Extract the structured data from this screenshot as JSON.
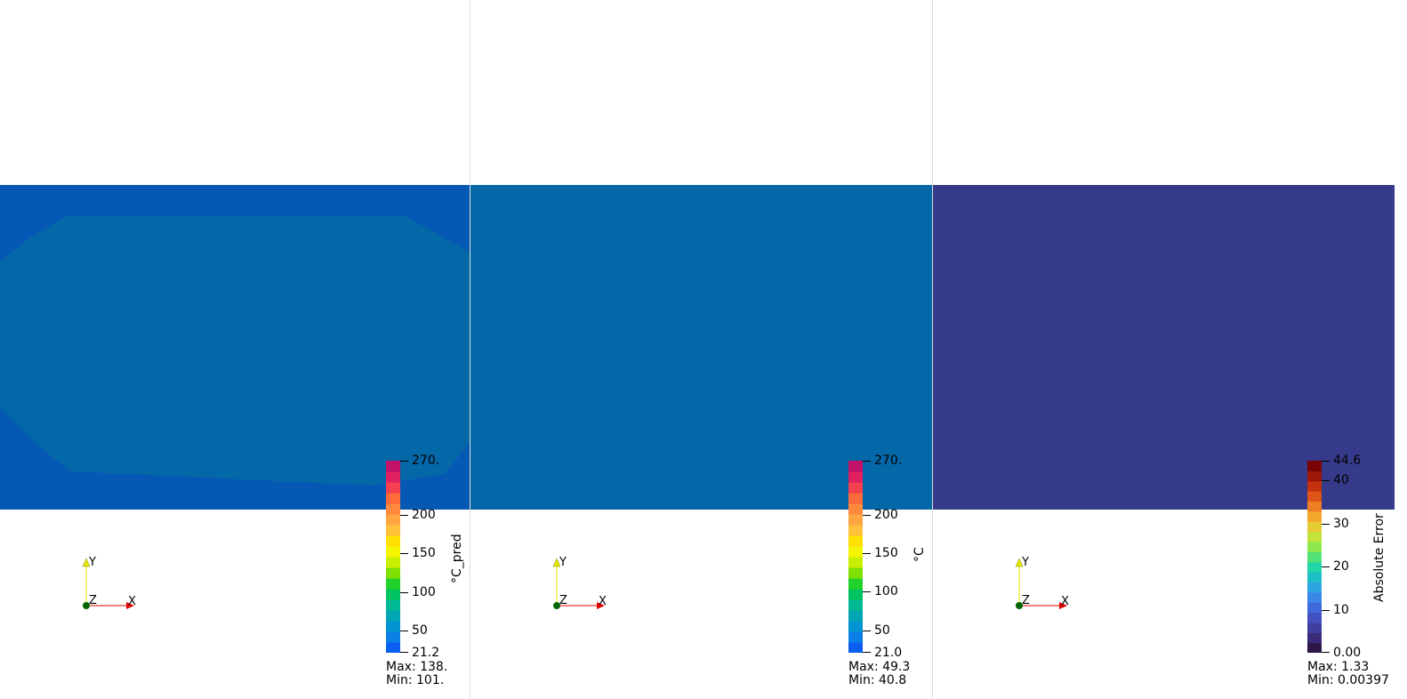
{
  "colors": {
    "pred_outer": "#0658b5",
    "pred_inner": "#0467a8",
    "true_field": "#0467a8",
    "err_field": "#353b8a",
    "x_axis": "#e00000",
    "y_axis": "#e6e600",
    "origin": "#006400"
  },
  "axes": {
    "x_label": "X",
    "y_label": "Y",
    "z_label": "Z"
  },
  "panels": {
    "pred": {
      "colorbar_title": "°C_pred",
      "ticks": [
        {
          "value": 270,
          "label": "270."
        },
        {
          "value": 200,
          "label": "200"
        },
        {
          "value": 150,
          "label": "150"
        },
        {
          "value": 100,
          "label": "100"
        },
        {
          "value": 50,
          "label": "50"
        },
        {
          "value": 21.2,
          "label": "21.2"
        }
      ],
      "range": [
        21.2,
        270
      ],
      "max_text": "Max: 138.",
      "min_text": "Min: 101."
    },
    "true": {
      "colorbar_title": "°C",
      "ticks": [
        {
          "value": 270,
          "label": "270."
        },
        {
          "value": 200,
          "label": "200"
        },
        {
          "value": 150,
          "label": "150"
        },
        {
          "value": 100,
          "label": "100"
        },
        {
          "value": 50,
          "label": "50"
        },
        {
          "value": 21.0,
          "label": "21.0"
        }
      ],
      "range": [
        21.0,
        270
      ],
      "max_text": "Max: 49.3",
      "min_text": "Min: 40.8"
    },
    "err": {
      "colorbar_title": "Absolute Error",
      "ticks": [
        {
          "value": 44.6,
          "label": "44.6"
        },
        {
          "value": 40,
          "label": "40"
        },
        {
          "value": 30,
          "label": "30"
        },
        {
          "value": 20,
          "label": "20"
        },
        {
          "value": 10,
          "label": "10"
        },
        {
          "value": 0,
          "label": "0.00"
        }
      ],
      "range": [
        0,
        44.6
      ],
      "max_text": "Max: 1.33",
      "min_text": "Min: 0.00397"
    }
  }
}
